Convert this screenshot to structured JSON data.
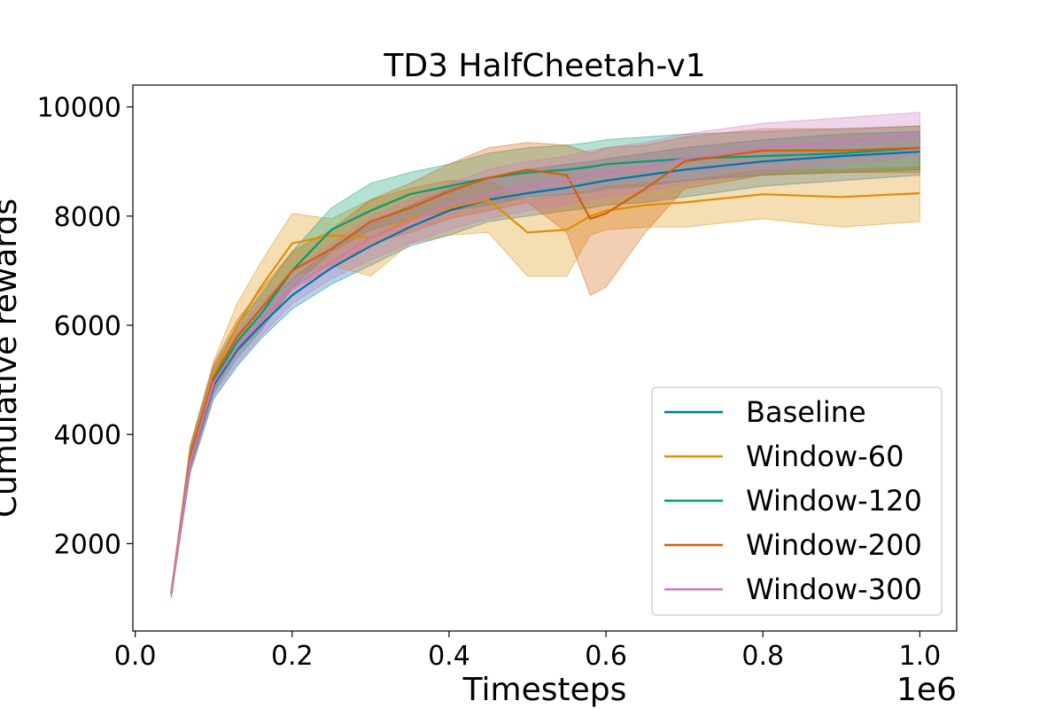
{
  "chart_data": {
    "type": "line",
    "title": "TD3 HalfCheetah-v1",
    "xlabel": "Timesteps",
    "ylabel": "Cumulative rewards",
    "x_offset_label": "1e6",
    "xlim": [
      -0.003,
      1.047
    ],
    "ylim": [
      400,
      10400
    ],
    "xticks": [
      0.0,
      0.2,
      0.4,
      0.6,
      0.8,
      1.0
    ],
    "xtick_labels": [
      "0.0",
      "0.2",
      "0.4",
      "0.6",
      "0.8",
      "1.0"
    ],
    "yticks": [
      2000,
      4000,
      6000,
      8000,
      10000
    ],
    "ytick_labels": [
      "2000",
      "4000",
      "6000",
      "8000",
      "10000"
    ],
    "legend_position": "lower-right",
    "x": [
      0.046,
      0.07,
      0.1,
      0.13,
      0.16,
      0.2,
      0.25,
      0.3,
      0.35,
      0.4,
      0.45,
      0.5,
      0.55,
      0.58,
      0.6,
      0.65,
      0.7,
      0.8,
      0.9,
      1.0
    ],
    "series": [
      {
        "name": "Baseline",
        "color": "#0173b2",
        "values": [
          1100,
          3500,
          4900,
          5550,
          6000,
          6550,
          7050,
          7450,
          7800,
          8100,
          8300,
          8420,
          8520,
          8600,
          8650,
          8750,
          8850,
          9000,
          9100,
          9180
        ],
        "lower": [
          1050,
          3300,
          4650,
          5250,
          5750,
          6300,
          6750,
          7100,
          7450,
          7650,
          7900,
          8000,
          8100,
          8150,
          8200,
          8250,
          8350,
          8550,
          8650,
          8750
        ],
        "upper": [
          1150,
          3700,
          5100,
          5800,
          6300,
          6850,
          7400,
          7850,
          8200,
          8500,
          8700,
          8850,
          8950,
          9000,
          9050,
          9150,
          9250,
          9400,
          9500,
          9550
        ]
      },
      {
        "name": "Window-60",
        "color": "#de8f05",
        "values": [
          1080,
          3600,
          5100,
          6000,
          6700,
          7500,
          7650,
          7600,
          7950,
          8150,
          8300,
          7700,
          7750,
          8000,
          8100,
          8200,
          8250,
          8400,
          8350,
          8420
        ],
        "lower": [
          1000,
          3400,
          4850,
          5700,
          6300,
          6900,
          7100,
          6900,
          7500,
          7650,
          7700,
          6900,
          6900,
          7650,
          7750,
          7800,
          7800,
          7950,
          7800,
          7900
        ],
        "upper": [
          1150,
          3800,
          5350,
          6400,
          7150,
          8050,
          7950,
          8300,
          8500,
          8650,
          8650,
          8300,
          8400,
          8450,
          8550,
          8600,
          8650,
          8850,
          8850,
          8900
        ]
      },
      {
        "name": "Window-120",
        "color": "#029e73",
        "values": [
          1100,
          3550,
          5000,
          5700,
          6200,
          7000,
          7750,
          8100,
          8400,
          8550,
          8700,
          8800,
          8850,
          8900,
          8950,
          9000,
          9050,
          9100,
          9150,
          9250
        ],
        "lower": [
          1050,
          3350,
          4750,
          5400,
          5900,
          6700,
          7350,
          7750,
          7950,
          8100,
          8200,
          8350,
          8400,
          8450,
          8500,
          8550,
          8650,
          8750,
          8800,
          8850
        ],
        "upper": [
          1150,
          3750,
          5250,
          6000,
          6550,
          7350,
          8150,
          8600,
          8800,
          8950,
          9150,
          9250,
          9300,
          9350,
          9400,
          9450,
          9500,
          9550,
          9600,
          9650
        ]
      },
      {
        "name": "Window-200",
        "color": "#d55e00",
        "values": [
          1100,
          3600,
          5050,
          5800,
          6300,
          7000,
          7400,
          7900,
          8150,
          8450,
          8700,
          8850,
          8750,
          7950,
          8050,
          8500,
          9000,
          9200,
          9200,
          9250
        ],
        "lower": [
          1000,
          3400,
          4800,
          5500,
          5950,
          6650,
          7050,
          7500,
          7700,
          7950,
          8100,
          8250,
          7700,
          6550,
          6700,
          7700,
          8500,
          8750,
          8800,
          8800
        ],
        "upper": [
          1200,
          3800,
          5300,
          6100,
          6650,
          7350,
          7750,
          8300,
          8600,
          8950,
          9250,
          9350,
          9300,
          9150,
          9250,
          9300,
          9450,
          9600,
          9600,
          9650
        ]
      },
      {
        "name": "Window-300",
        "color": "#cc78bc",
        "values": [
          1100,
          3500,
          4950,
          5600,
          6100,
          6700,
          7150,
          7600,
          7900,
          8200,
          8400,
          8550,
          8650,
          8750,
          8800,
          8900,
          9050,
          9250,
          9350,
          9500
        ],
        "lower": [
          1050,
          3300,
          4700,
          5300,
          5800,
          6400,
          6850,
          7200,
          7500,
          7750,
          7950,
          8100,
          8200,
          8300,
          8350,
          8450,
          8600,
          8800,
          8950,
          9100
        ],
        "upper": [
          1150,
          3700,
          5200,
          5900,
          6400,
          7000,
          7500,
          8000,
          8300,
          8600,
          8850,
          9000,
          9100,
          9200,
          9250,
          9350,
          9500,
          9700,
          9800,
          9900
        ]
      }
    ]
  }
}
